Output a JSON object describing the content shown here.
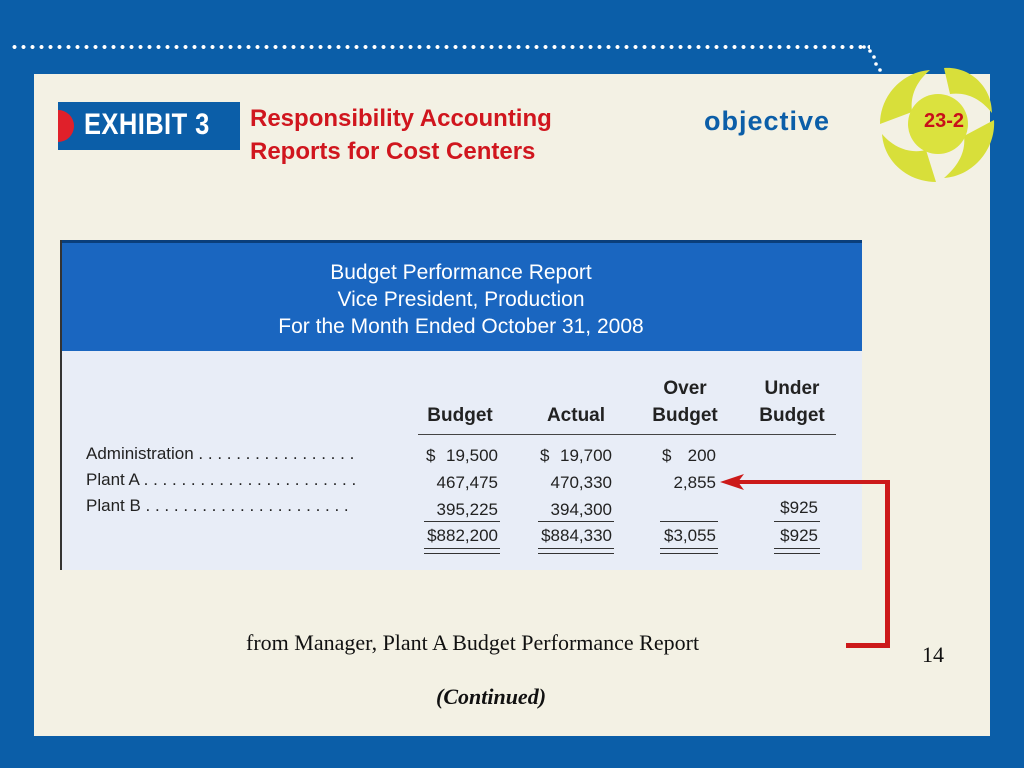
{
  "exhibit_label": "EXHIBIT 3",
  "title_line1": "Responsibility Accounting",
  "title_line2": "Reports for Cost Centers",
  "objective_label": "objective",
  "objective_number": "23-2",
  "report": {
    "heading1": "Budget Performance Report",
    "heading2": "Vice President, Production",
    "heading3": "For the Month Ended October 31, 2008",
    "columns": {
      "budget": "Budget",
      "actual": "Actual",
      "over_line1": "Over",
      "over_line2": "Budget",
      "under_line1": "Under",
      "under_line2": "Budget"
    },
    "rows": [
      {
        "label": "Administration . . . . . . . . . . . . . . . . .",
        "budget": "19,500",
        "actual": "19,700",
        "over": "200",
        "under": ""
      },
      {
        "label": "Plant A . . . . . . . . . . . . . . . . . . . . . . .",
        "budget": "467,475",
        "actual": "470,330",
        "over": "2,855",
        "under": ""
      },
      {
        "label": "Plant B . . . . . . . . . . . . . . . . . . . . . .",
        "budget": "395,225",
        "actual": "394,300",
        "over": "",
        "under": "$925"
      }
    ],
    "dollar_sign": "$",
    "totals": {
      "budget": "$882,200",
      "actual": "$884,330",
      "over": "$3,055",
      "under": "$925"
    }
  },
  "caption": "from Manager, Plant A Budget Performance Report",
  "page_number": "14",
  "continued": "(Continued)",
  "colors": {
    "background": "#0b5ea8",
    "slide": "#f3f1e4",
    "title_red": "#d0161e",
    "header_blue": "#1a66c0",
    "arrow_red": "#cc1a1a"
  }
}
